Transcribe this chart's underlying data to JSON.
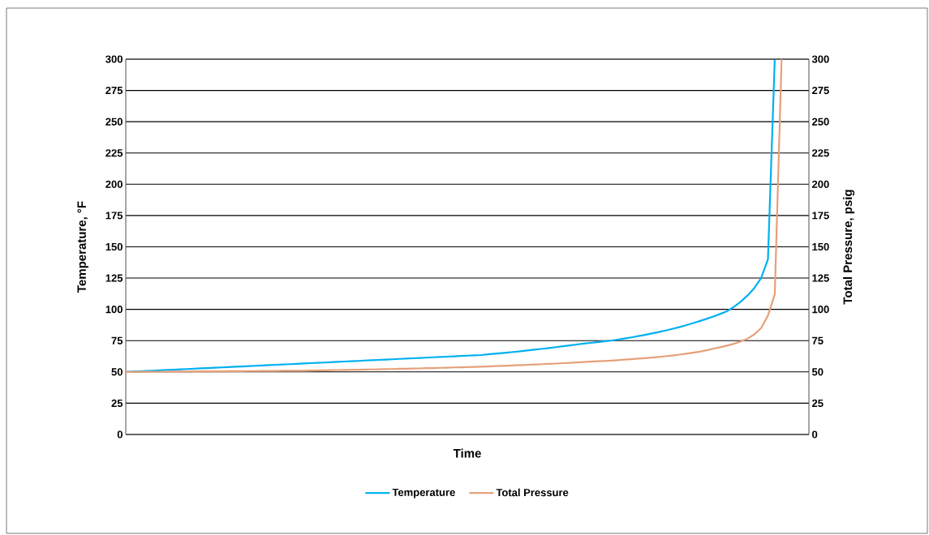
{
  "chart_data": {
    "type": "line",
    "xlabel": "Time",
    "ylabel": "Temperature, °F",
    "y2label": "Total Pressure, psig",
    "categories": [
      null,
      null,
      null,
      null,
      null,
      null,
      null,
      null,
      null,
      null,
      null,
      null,
      null,
      null,
      null,
      null,
      null,
      null,
      null,
      null,
      null,
      null,
      null,
      null,
      null,
      null,
      null,
      null,
      null,
      null,
      null,
      null,
      null,
      null,
      null,
      null,
      null,
      null,
      null,
      null,
      null,
      null,
      null,
      null,
      null,
      null,
      null,
      null,
      null,
      null,
      null,
      null,
      null,
      null,
      null,
      null,
      null,
      null,
      null,
      null,
      null,
      null,
      null,
      null,
      null,
      null,
      null,
      null,
      null,
      null,
      null,
      null,
      null,
      null,
      null,
      null,
      null,
      null,
      null,
      null,
      null,
      null,
      null,
      null,
      null,
      null,
      null,
      null,
      null,
      null,
      null,
      null,
      null,
      null,
      null,
      null,
      null,
      null,
      null,
      null,
      null
    ],
    "series": [
      {
        "name": "Temperature",
        "color": "#00b0f0",
        "values": [
          50,
          50.3,
          50.5,
          50.8,
          51,
          51.3,
          51.6,
          51.8,
          52.1,
          52.3,
          52.6,
          52.9,
          53.1,
          53.4,
          53.6,
          53.9,
          54.2,
          54.4,
          54.7,
          54.9,
          55.2,
          55.5,
          55.7,
          56,
          56.2,
          56.5,
          56.8,
          57,
          57.3,
          57.5,
          57.8,
          58.1,
          58.3,
          58.6,
          58.8,
          59.1,
          59.4,
          59.6,
          59.9,
          60.1,
          60.4,
          60.7,
          60.9,
          61.2,
          61.4,
          61.7,
          62,
          62.2,
          62.5,
          62.7,
          63,
          63.3,
          63.5,
          64,
          64.5,
          65,
          65.5,
          66.1,
          66.7,
          67.3,
          67.9,
          68.5,
          69.1,
          69.8,
          70.5,
          71.2,
          71.9,
          72.6,
          73.2,
          73.8,
          74.4,
          75,
          75.8,
          76.7,
          77.6,
          78.6,
          79.6,
          80.7,
          81.9,
          83.1,
          84.4,
          85.8,
          87.3,
          88.9,
          90.6,
          92.4,
          94.3,
          96.3,
          98.5,
          102,
          106,
          111,
          117,
          125,
          140,
          300,
          null,
          null,
          null,
          null,
          null
        ]
      },
      {
        "name": "Total Pressure",
        "color": "#e6a07a",
        "axis": "y2",
        "values": [
          50,
          50,
          50.1,
          50.1,
          50.2,
          50.2,
          50.2,
          50.3,
          50.3,
          50.3,
          50.4,
          50.4,
          50.5,
          50.5,
          50.5,
          50.6,
          50.6,
          50.6,
          50.7,
          50.7,
          50.8,
          50.8,
          50.8,
          50.9,
          50.9,
          50.9,
          51,
          51.1,
          51.2,
          51.3,
          51.4,
          51.5,
          51.6,
          51.7,
          51.8,
          51.9,
          52,
          52.1,
          52.2,
          52.3,
          52.5,
          52.6,
          52.7,
          52.8,
          53,
          53.1,
          53.3,
          53.4,
          53.6,
          53.7,
          53.9,
          54,
          54.2,
          54.4,
          54.6,
          54.8,
          55,
          55.3,
          55.5,
          55.7,
          56,
          56.2,
          56.5,
          56.7,
          57,
          57.3,
          57.6,
          57.9,
          58.2,
          58.5,
          58.7,
          59,
          59.4,
          59.8,
          60.2,
          60.6,
          61,
          61.5,
          62,
          62.5,
          63.1,
          63.8,
          64.5,
          65.3,
          66.2,
          67.3,
          68.5,
          69.7,
          71,
          72.5,
          74.3,
          76.5,
          80,
          85,
          95,
          112,
          300,
          null,
          null,
          null,
          null
        ]
      }
    ],
    "ylim": [
      0,
      300
    ],
    "yticks": [
      0,
      25,
      50,
      75,
      100,
      125,
      150,
      175,
      200,
      225,
      250,
      275,
      300
    ],
    "y2lim": [
      0,
      300
    ],
    "y2ticks": [
      0,
      25,
      50,
      75,
      100,
      125,
      150,
      175,
      200,
      225,
      250,
      275,
      300
    ],
    "grid": "y",
    "legend": "bottom"
  }
}
